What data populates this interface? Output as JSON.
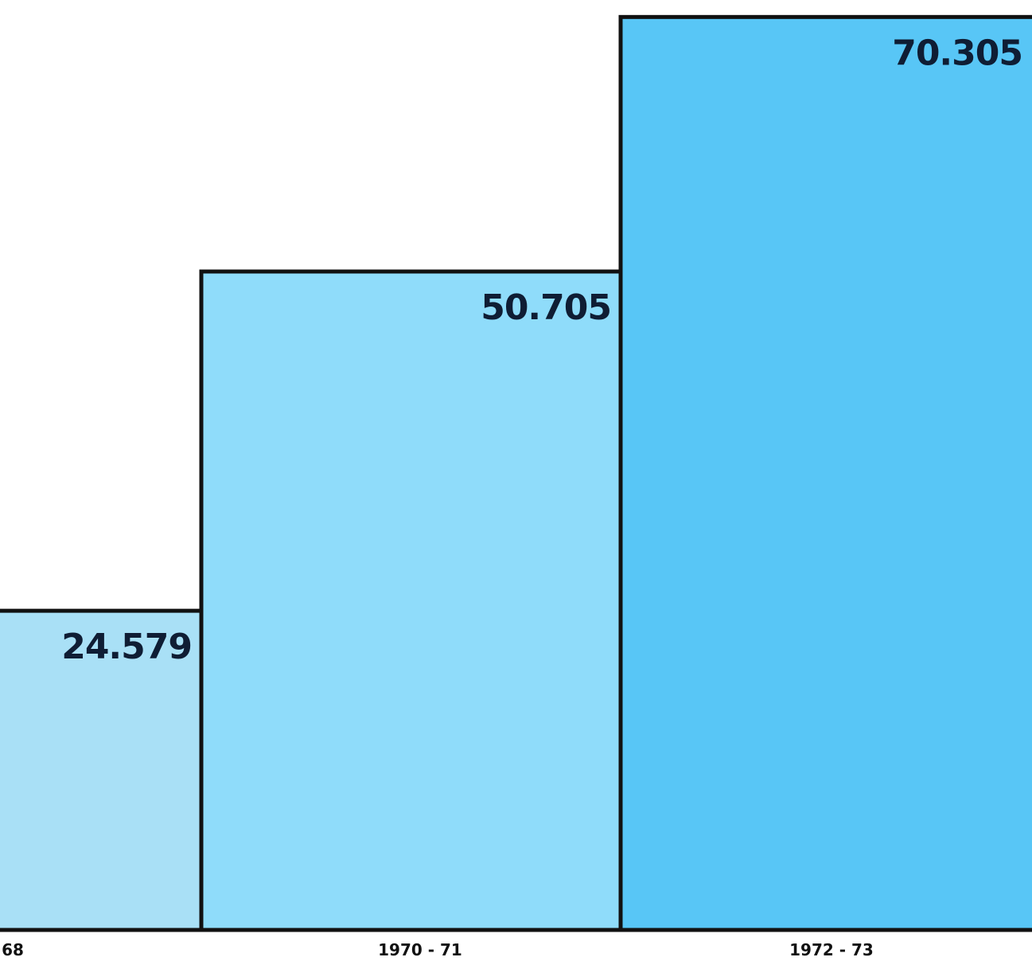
{
  "chart_data": {
    "type": "bar",
    "categories": [
      "68",
      "1970 - 71",
      "1972 - 73"
    ],
    "values": [
      24.579,
      50.705,
      70.305
    ],
    "value_labels": [
      "24.579",
      "50.705",
      "70.305"
    ],
    "ylim": [
      0,
      71
    ],
    "grid": false,
    "colors": {
      "bar_fills": [
        "#a9e0f6",
        "#8fdcfa",
        "#58c6f6"
      ],
      "outline": "#111111",
      "value_text": "#0f1d34"
    }
  }
}
